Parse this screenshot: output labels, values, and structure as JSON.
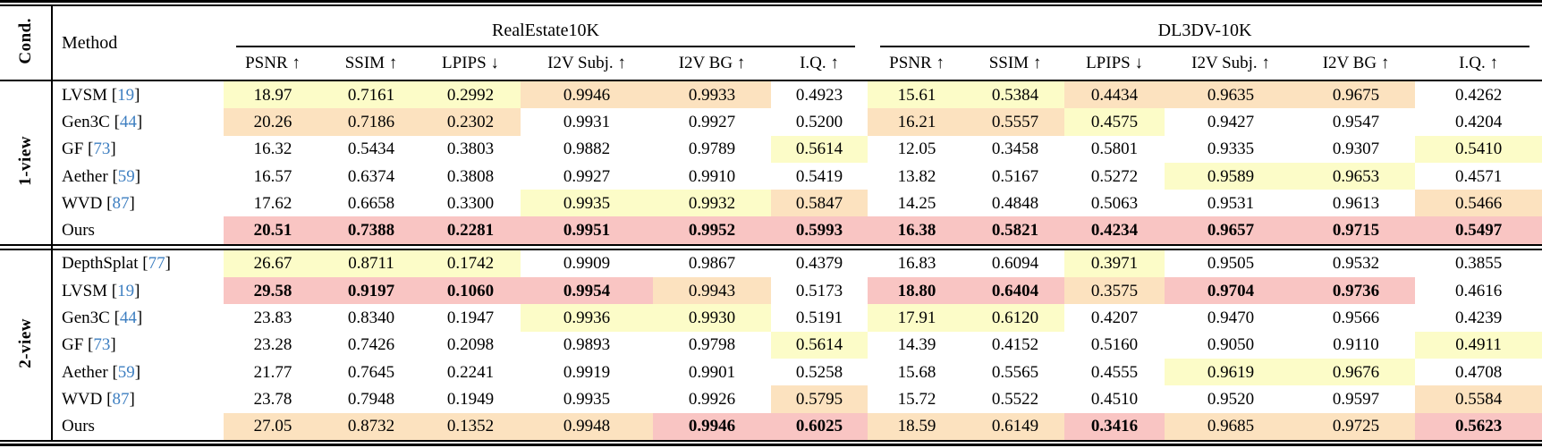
{
  "colors": {
    "best_highlight": "#F9C5C3",
    "second_highlight": "#FCE2BF",
    "third_highlight": "#FCFCC8",
    "citation": "#3E7FC1"
  },
  "table": {
    "cond_label": "Cond.",
    "method_label": "Method",
    "groups": [
      "RealEstate10K",
      "DL3DV-10K"
    ],
    "metrics": [
      "PSNR ↑",
      "SSIM ↑",
      "LPIPS ↓",
      "I2V Subj. ↑",
      "I2V BG ↑",
      "I.Q. ↑"
    ],
    "sections": [
      {
        "cond": "1-view",
        "rows": [
          {
            "method": "LVSM",
            "cite": "19",
            "cells": [
              {
                "v": "18.97",
                "h": "y"
              },
              {
                "v": "0.7161",
                "h": "y"
              },
              {
                "v": "0.2992",
                "h": "y"
              },
              {
                "v": "0.9946",
                "h": "o"
              },
              {
                "v": "0.9933",
                "h": "o"
              },
              {
                "v": "0.4923"
              },
              {
                "v": "15.61",
                "h": "y"
              },
              {
                "v": "0.5384",
                "h": "y"
              },
              {
                "v": "0.4434",
                "h": "o"
              },
              {
                "v": "0.9635",
                "h": "o"
              },
              {
                "v": "0.9675",
                "h": "o"
              },
              {
                "v": "0.4262"
              }
            ]
          },
          {
            "method": "Gen3C",
            "cite": "44",
            "cells": [
              {
                "v": "20.26",
                "h": "o"
              },
              {
                "v": "0.7186",
                "h": "o"
              },
              {
                "v": "0.2302",
                "h": "o"
              },
              {
                "v": "0.9931"
              },
              {
                "v": "0.9927"
              },
              {
                "v": "0.5200"
              },
              {
                "v": "16.21",
                "h": "o"
              },
              {
                "v": "0.5557",
                "h": "o"
              },
              {
                "v": "0.4575",
                "h": "y"
              },
              {
                "v": "0.9427"
              },
              {
                "v": "0.9547"
              },
              {
                "v": "0.4204"
              }
            ]
          },
          {
            "method": "GF",
            "cite": "73",
            "cells": [
              {
                "v": "16.32"
              },
              {
                "v": "0.5434"
              },
              {
                "v": "0.3803"
              },
              {
                "v": "0.9882"
              },
              {
                "v": "0.9789"
              },
              {
                "v": "0.5614",
                "h": "y"
              },
              {
                "v": "12.05"
              },
              {
                "v": "0.3458"
              },
              {
                "v": "0.5801"
              },
              {
                "v": "0.9335"
              },
              {
                "v": "0.9307"
              },
              {
                "v": "0.5410",
                "h": "y"
              }
            ]
          },
          {
            "method": "Aether",
            "cite": "59",
            "cells": [
              {
                "v": "16.57"
              },
              {
                "v": "0.6374"
              },
              {
                "v": "0.3808"
              },
              {
                "v": "0.9927"
              },
              {
                "v": "0.9910"
              },
              {
                "v": "0.5419"
              },
              {
                "v": "13.82"
              },
              {
                "v": "0.5167"
              },
              {
                "v": "0.5272"
              },
              {
                "v": "0.9589",
                "h": "y"
              },
              {
                "v": "0.9653",
                "h": "y"
              },
              {
                "v": "0.4571"
              }
            ]
          },
          {
            "method": "WVD",
            "cite": "87",
            "cells": [
              {
                "v": "17.62"
              },
              {
                "v": "0.6658"
              },
              {
                "v": "0.3300"
              },
              {
                "v": "0.9935",
                "h": "y"
              },
              {
                "v": "0.9932",
                "h": "y"
              },
              {
                "v": "0.5847",
                "h": "o"
              },
              {
                "v": "14.25"
              },
              {
                "v": "0.4848"
              },
              {
                "v": "0.5063"
              },
              {
                "v": "0.9531"
              },
              {
                "v": "0.9613"
              },
              {
                "v": "0.5466",
                "h": "o"
              }
            ]
          },
          {
            "method": "Ours",
            "cite": "",
            "cells": [
              {
                "v": "20.51",
                "h": "p",
                "b": 1
              },
              {
                "v": "0.7388",
                "h": "p",
                "b": 1
              },
              {
                "v": "0.2281",
                "h": "p",
                "b": 1
              },
              {
                "v": "0.9951",
                "h": "p",
                "b": 1
              },
              {
                "v": "0.9952",
                "h": "p",
                "b": 1
              },
              {
                "v": "0.5993",
                "h": "p",
                "b": 1
              },
              {
                "v": "16.38",
                "h": "p",
                "b": 1
              },
              {
                "v": "0.5821",
                "h": "p",
                "b": 1
              },
              {
                "v": "0.4234",
                "h": "p",
                "b": 1
              },
              {
                "v": "0.9657",
                "h": "p",
                "b": 1
              },
              {
                "v": "0.9715",
                "h": "p",
                "b": 1
              },
              {
                "v": "0.5497",
                "h": "p",
                "b": 1
              }
            ]
          }
        ]
      },
      {
        "cond": "2-view",
        "rows": [
          {
            "method": "DepthSplat",
            "cite": "77",
            "cells": [
              {
                "v": "26.67",
                "h": "y"
              },
              {
                "v": "0.8711",
                "h": "y"
              },
              {
                "v": "0.1742",
                "h": "y"
              },
              {
                "v": "0.9909"
              },
              {
                "v": "0.9867"
              },
              {
                "v": "0.4379"
              },
              {
                "v": "16.83"
              },
              {
                "v": "0.6094"
              },
              {
                "v": "0.3971",
                "h": "y"
              },
              {
                "v": "0.9505"
              },
              {
                "v": "0.9532"
              },
              {
                "v": "0.3855"
              }
            ]
          },
          {
            "method": "LVSM",
            "cite": "19",
            "cells": [
              {
                "v": "29.58",
                "h": "p",
                "b": 1
              },
              {
                "v": "0.9197",
                "h": "p",
                "b": 1
              },
              {
                "v": "0.1060",
                "h": "p",
                "b": 1
              },
              {
                "v": "0.9954",
                "h": "p",
                "b": 1
              },
              {
                "v": "0.9943",
                "h": "o"
              },
              {
                "v": "0.5173"
              },
              {
                "v": "18.80",
                "h": "p",
                "b": 1
              },
              {
                "v": "0.6404",
                "h": "p",
                "b": 1
              },
              {
                "v": "0.3575",
                "h": "o"
              },
              {
                "v": "0.9704",
                "h": "p",
                "b": 1
              },
              {
                "v": "0.9736",
                "h": "p",
                "b": 1
              },
              {
                "v": "0.4616"
              }
            ]
          },
          {
            "method": "Gen3C",
            "cite": "44",
            "cells": [
              {
                "v": "23.83"
              },
              {
                "v": "0.8340"
              },
              {
                "v": "0.1947"
              },
              {
                "v": "0.9936",
                "h": "y"
              },
              {
                "v": "0.9930",
                "h": "y"
              },
              {
                "v": "0.5191"
              },
              {
                "v": "17.91",
                "h": "y"
              },
              {
                "v": "0.6120",
                "h": "y"
              },
              {
                "v": "0.4207"
              },
              {
                "v": "0.9470"
              },
              {
                "v": "0.9566"
              },
              {
                "v": "0.4239"
              }
            ]
          },
          {
            "method": "GF",
            "cite": "73",
            "cells": [
              {
                "v": "23.28"
              },
              {
                "v": "0.7426"
              },
              {
                "v": "0.2098"
              },
              {
                "v": "0.9893"
              },
              {
                "v": "0.9798"
              },
              {
                "v": "0.5614",
                "h": "y"
              },
              {
                "v": "14.39"
              },
              {
                "v": "0.4152"
              },
              {
                "v": "0.5160"
              },
              {
                "v": "0.9050"
              },
              {
                "v": "0.9110"
              },
              {
                "v": "0.4911",
                "h": "y"
              }
            ]
          },
          {
            "method": "Aether",
            "cite": "59",
            "cells": [
              {
                "v": "21.77"
              },
              {
                "v": "0.7645"
              },
              {
                "v": "0.2241"
              },
              {
                "v": "0.9919"
              },
              {
                "v": "0.9901"
              },
              {
                "v": "0.5258"
              },
              {
                "v": "15.68"
              },
              {
                "v": "0.5565"
              },
              {
                "v": "0.4555"
              },
              {
                "v": "0.9619",
                "h": "y"
              },
              {
                "v": "0.9676",
                "h": "y"
              },
              {
                "v": "0.4708"
              }
            ]
          },
          {
            "method": "WVD",
            "cite": "87",
            "cells": [
              {
                "v": "23.78"
              },
              {
                "v": "0.7948"
              },
              {
                "v": "0.1949"
              },
              {
                "v": "0.9935"
              },
              {
                "v": "0.9926"
              },
              {
                "v": "0.5795",
                "h": "o"
              },
              {
                "v": "15.72"
              },
              {
                "v": "0.5522"
              },
              {
                "v": "0.4510"
              },
              {
                "v": "0.9520"
              },
              {
                "v": "0.9597"
              },
              {
                "v": "0.5584",
                "h": "o"
              }
            ]
          },
          {
            "method": "Ours",
            "cite": "",
            "cells": [
              {
                "v": "27.05",
                "h": "o"
              },
              {
                "v": "0.8732",
                "h": "o"
              },
              {
                "v": "0.1352",
                "h": "o"
              },
              {
                "v": "0.9948",
                "h": "o"
              },
              {
                "v": "0.9946",
                "h": "p",
                "b": 1
              },
              {
                "v": "0.6025",
                "h": "p",
                "b": 1
              },
              {
                "v": "18.59",
                "h": "o"
              },
              {
                "v": "0.6149",
                "h": "o"
              },
              {
                "v": "0.3416",
                "h": "p",
                "b": 1
              },
              {
                "v": "0.9685",
                "h": "o"
              },
              {
                "v": "0.9725",
                "h": "o"
              },
              {
                "v": "0.5623",
                "h": "p",
                "b": 1
              }
            ]
          }
        ]
      }
    ]
  }
}
